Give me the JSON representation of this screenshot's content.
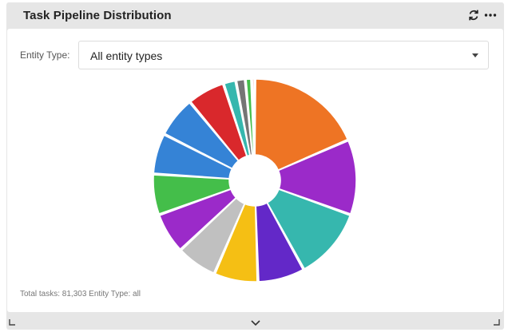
{
  "widget": {
    "title": "Task Pipeline Distribution",
    "header_icons": [
      "refresh-icon",
      "more-options-icon"
    ]
  },
  "filter": {
    "label": "Entity Type:",
    "selected": "All entity types",
    "icon": "chevron-down-icon"
  },
  "footer": {
    "summary": "Total tasks: 81,303 Entity Type: all"
  },
  "chart_data": {
    "type": "pie",
    "subtype": "donut",
    "title": "",
    "legend": "none",
    "slices": [
      {
        "value": 18.5,
        "color": "#ee7424"
      },
      {
        "value": 12.0,
        "color": "#9b2ac9"
      },
      {
        "value": 11.5,
        "color": "#36b7ae"
      },
      {
        "value": 7.5,
        "color": "#6328c8"
      },
      {
        "value": 7.0,
        "color": "#f5bf14"
      },
      {
        "value": 6.5,
        "color": "#c0c0c0"
      },
      {
        "value": 6.5,
        "color": "#9b2ac9"
      },
      {
        "value": 6.5,
        "color": "#44be4a"
      },
      {
        "value": 6.5,
        "color": "#3583d6"
      },
      {
        "value": 6.5,
        "color": "#3583d6"
      },
      {
        "value": 6.0,
        "color": "#d9282c"
      },
      {
        "value": 2.0,
        "color": "#36b7ae"
      },
      {
        "value": 1.5,
        "color": "#757575"
      },
      {
        "value": 1.0,
        "color": "#44be4a"
      },
      {
        "value": 0.5,
        "color": "#d9282c"
      }
    ]
  }
}
